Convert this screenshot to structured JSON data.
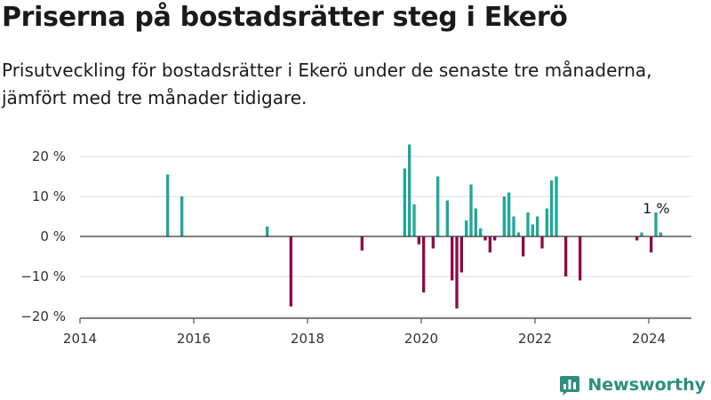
{
  "header": {
    "title": "Priserna på bostadsrätter steg i Ekerö",
    "subtitle": "Prisutveckling för bostadsrätter i Ekerö under de senaste tre månaderna, jämfört med tre månader tidigare."
  },
  "brand": {
    "name": "Newsworthy",
    "icon": "bar-chart-logo-icon",
    "color": "#2a8f7f"
  },
  "colors": {
    "positive": "#1ea89a",
    "negative": "#8f0b46",
    "baseline": "#333333",
    "grid": "#dddddd"
  },
  "chart_data": {
    "type": "bar",
    "title": "Priserna på bostadsrätter steg i Ekerö",
    "subtitle": "Prisutveckling för bostadsrätter i Ekerö under de senaste tre månaderna, jämfört med tre månader tidigare.",
    "xlabel": "",
    "ylabel": "",
    "xlim": [
      2014.0,
      2024.75
    ],
    "ylim": [
      -20,
      25
    ],
    "x_ticks": [
      "2014",
      "2016",
      "2018",
      "2020",
      "2022",
      "2024"
    ],
    "y_ticks": [
      "20 %",
      "10 %",
      "0 %",
      "−10 %",
      "−20 %"
    ],
    "grid": true,
    "legend": "none",
    "annotation": {
      "x": 2024.08,
      "y": 6,
      "text": "1 %"
    },
    "series": [
      {
        "x": [
          "2015-07",
          "2015-10",
          "2017-04",
          "2017-09",
          "2018-12",
          "2019-09",
          "2019-10",
          "2019-11",
          "2019-12",
          "2020-01",
          "2020-03",
          "2020-04",
          "2020-06",
          "2020-07",
          "2020-08",
          "2020-09",
          "2020-10",
          "2020-11",
          "2020-12",
          "2021-01",
          "2021-02",
          "2021-03",
          "2021-04",
          "2021-06",
          "2021-07",
          "2021-08",
          "2021-09",
          "2021-10",
          "2021-11",
          "2021-12",
          "2022-01",
          "2022-02",
          "2022-03",
          "2022-04",
          "2022-05",
          "2022-07",
          "2022-10",
          "2023-10",
          "2023-11",
          "2024-01",
          "2024-02",
          "2024-03"
        ],
        "values": [
          15.5,
          10,
          2.5,
          -17.5,
          -3.5,
          17,
          23,
          8,
          -2,
          -14,
          -3,
          15,
          9,
          -11,
          -18,
          -9,
          4,
          13,
          7,
          2,
          -1,
          -4,
          -1,
          10,
          11,
          5,
          1,
          -5,
          6,
          3,
          5,
          -3,
          7,
          14,
          15,
          -10,
          -11,
          -1,
          1,
          -4,
          6,
          1
        ]
      }
    ]
  }
}
